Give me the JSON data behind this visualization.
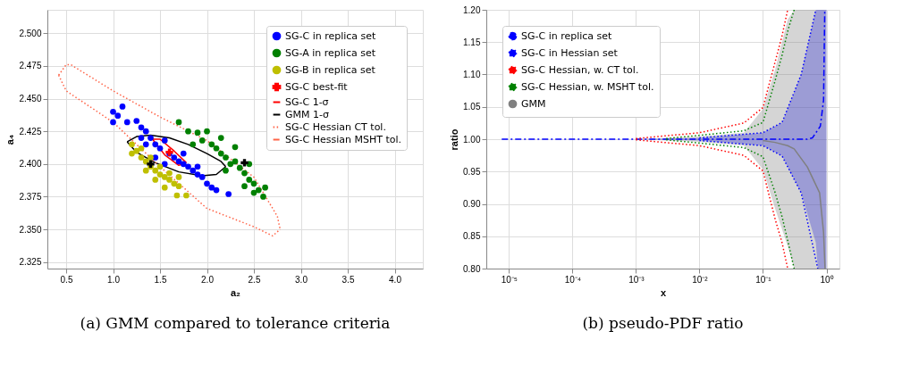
{
  "chart_data": [
    {
      "type": "scatter",
      "title": "(a) GMM compared to tolerance criteria",
      "xlabel": "a₂",
      "ylabel": "a₄",
      "xlim": [
        0.3,
        4.3
      ],
      "ylim": [
        2.32,
        2.518
      ],
      "xticks": [
        0.5,
        {
          "value": 1,
          "label": "1.0"
        },
        1.5,
        {
          "value": 2,
          "label": "2.0"
        },
        2.5,
        {
          "value": 3,
          "label": "3.0"
        },
        3.5,
        {
          "value": 4,
          "label": "4.0"
        }
      ],
      "yticks": [
        {
          "value": 2.325,
          "label": "2.325"
        },
        {
          "value": 2.35,
          "label": "2.350"
        },
        {
          "value": 2.375,
          "label": "2.375"
        },
        {
          "value": 2.4,
          "label": "2.400"
        },
        {
          "value": 2.425,
          "label": "2.425"
        },
        {
          "value": 2.45,
          "label": "2.450"
        },
        {
          "value": 2.475,
          "label": "2.475"
        },
        {
          "value": 2.5,
          "label": "2.500"
        }
      ],
      "grid": true,
      "legend": "top right",
      "series": [
        {
          "name": "SG-C in replica set",
          "marker": "circle",
          "color": "#0000ff",
          "x": [
            1.0,
            1.05,
            1.1,
            1.0,
            1.15,
            1.25,
            1.3,
            1.35,
            1.3,
            1.4,
            1.45,
            1.5,
            1.55,
            1.6,
            1.65,
            1.7,
            1.75,
            1.8,
            1.85,
            1.9,
            1.95,
            2.0,
            2.05,
            2.1,
            2.23,
            1.45,
            1.55,
            1.75,
            1.9,
            1.35
          ],
          "values": [
            2.44,
            2.437,
            2.444,
            2.432,
            2.432,
            2.433,
            2.428,
            2.425,
            2.42,
            2.42,
            2.415,
            2.412,
            2.418,
            2.408,
            2.405,
            2.402,
            2.4,
            2.398,
            2.395,
            2.392,
            2.39,
            2.385,
            2.382,
            2.38,
            2.377,
            2.405,
            2.4,
            2.408,
            2.398,
            2.415
          ]
        },
        {
          "name": "SG-A in replica set",
          "marker": "circle",
          "color": "#008000",
          "x": [
            1.7,
            1.8,
            1.9,
            2.0,
            1.95,
            2.05,
            2.1,
            2.15,
            2.2,
            2.25,
            2.3,
            2.35,
            2.4,
            2.45,
            2.5,
            2.55,
            2.6,
            2.3,
            2.2,
            2.4,
            2.5,
            2.15,
            1.85,
            2.45,
            2.62
          ],
          "values": [
            2.432,
            2.425,
            2.424,
            2.425,
            2.418,
            2.415,
            2.412,
            2.408,
            2.405,
            2.4,
            2.402,
            2.397,
            2.393,
            2.388,
            2.385,
            2.38,
            2.375,
            2.413,
            2.395,
            2.383,
            2.378,
            2.42,
            2.415,
            2.4,
            2.382
          ]
        },
        {
          "name": "SG-B in replica set",
          "marker": "circle",
          "color": "#bfbf00",
          "x": [
            1.2,
            1.25,
            1.3,
            1.2,
            1.35,
            1.4,
            1.45,
            1.5,
            1.55,
            1.6,
            1.65,
            1.7,
            1.55,
            1.68,
            1.78,
            1.3,
            1.4,
            1.5,
            1.45,
            1.6,
            1.35,
            1.7
          ],
          "values": [
            2.415,
            2.41,
            2.405,
            2.408,
            2.402,
            2.398,
            2.395,
            2.392,
            2.39,
            2.388,
            2.385,
            2.383,
            2.382,
            2.376,
            2.376,
            2.412,
            2.405,
            2.398,
            2.388,
            2.393,
            2.395,
            2.39
          ]
        },
        {
          "name": "SG-C best-fit",
          "marker": "cross",
          "color": "#ff0000",
          "x": [
            1.6
          ],
          "values": [
            2.409
          ]
        },
        {
          "name": "SG-C 1-σ",
          "type": "line",
          "line_style": "solid",
          "color": "#ff0000",
          "x": [
            1.42,
            1.5,
            1.65,
            1.78
          ],
          "values": [
            2.419,
            2.419,
            2.41,
            2.401
          ]
        },
        {
          "type": "line",
          "line_style": "solid",
          "color": "#ff0000",
          "x": [
            1.42,
            1.55,
            1.7,
            1.78
          ],
          "values": [
            2.419,
            2.407,
            2.399,
            2.401
          ]
        },
        {
          "name": "GMM 1-σ",
          "type": "line",
          "line_style": "solid",
          "color": "#000000",
          "x": [
            1.15,
            1.25,
            1.4,
            1.6,
            1.8,
            2.0,
            2.15,
            2.2
          ],
          "values": [
            2.417,
            2.421,
            2.422,
            2.42,
            2.415,
            2.408,
            2.402,
            2.398
          ]
        },
        {
          "type": "line",
          "line_style": "solid",
          "color": "#000000",
          "x": [
            1.15,
            1.25,
            1.45,
            1.7,
            1.95,
            2.1,
            2.2
          ],
          "values": [
            2.417,
            2.409,
            2.401,
            2.394,
            2.391,
            2.392,
            2.398
          ]
        },
        {
          "name": "SG-C Hessian CT tol.",
          "type": "line",
          "line_style": "dotted",
          "color": "#ff6347",
          "x": [
            0.42,
            0.5,
            0.55,
            1.0,
            1.5,
            2.0,
            2.5,
            2.75,
            2.78
          ],
          "values": [
            2.468,
            2.476,
            2.476,
            2.456,
            2.436,
            2.418,
            2.39,
            2.36,
            2.35
          ]
        },
        {
          "type": "line",
          "line_style": "dotted",
          "color": "#ff6347",
          "x": [
            0.42,
            0.5,
            1.0,
            1.5,
            2.0,
            2.5,
            2.7,
            2.78
          ],
          "values": [
            2.468,
            2.456,
            2.432,
            2.398,
            2.366,
            2.352,
            2.345,
            2.35
          ]
        },
        {
          "name": "SG-C Hessian MSHT tol.",
          "type": "line",
          "line_style": "dashed",
          "color": "#ff6347"
        },
        {
          "marker": "cross",
          "color": "#000000",
          "x": [
            1.4,
            2.4
          ],
          "values": [
            2.4,
            2.401
          ]
        }
      ]
    },
    {
      "type": "line",
      "title": "(b) pseudo-PDF ratio",
      "xlabel": "x",
      "ylabel": "ratio",
      "log": "x",
      "xlim": [
        4.4e-06,
        1.6
      ],
      "ylim": [
        0.8,
        1.2
      ],
      "xticks": [
        {
          "value": 1e-05,
          "label": "10⁻⁵"
        },
        {
          "value": 0.0001,
          "label": "10⁻⁴"
        },
        {
          "value": 0.001,
          "label": "10⁻³"
        },
        {
          "value": 0.01,
          "label": "10⁻²"
        },
        {
          "value": 0.1,
          "label": "10⁻¹"
        },
        {
          "value": 1,
          "label": "10⁰"
        }
      ],
      "yticks": [
        {
          "value": 0.8,
          "label": "0.80"
        },
        0.85,
        {
          "value": 0.9,
          "label": "0.90"
        },
        0.95,
        {
          "value": 1,
          "label": "1.00"
        },
        1.05,
        {
          "value": 1.1,
          "label": "1.10"
        },
        1.15,
        {
          "value": 1.2,
          "label": "1.20"
        }
      ],
      "grid": true,
      "legend": "top left",
      "series": [
        {
          "name": "SG-C in replica set",
          "line_style": "dashed",
          "color": "#0000ff",
          "x": [
            7.7e-06,
            0.001,
            0.1,
            0.5,
            0.6,
            0.8,
            0.9,
            0.94
          ],
          "values": [
            1,
            1,
            1,
            1,
            1.002,
            1.02,
            1.06,
            1.2
          ]
        },
        {
          "name": "SG-C in Hessian set",
          "type": "area",
          "line_style": "dotted",
          "color": "#0000ff",
          "x": [
            0.001,
            0.01,
            0.1,
            0.2,
            0.4,
            0.68,
            0.73,
            1.0
          ],
          "values": [
            null,
            null,
            null,
            null,
            null,
            null,
            null,
            null
          ],
          "upper": [
            1,
            1.002,
            1.01,
            1.026,
            1.1,
            1.2,
            1.2,
            1.2
          ],
          "lower": [
            1,
            0.998,
            0.99,
            0.974,
            0.917,
            0.84,
            0.8,
            0.8
          ]
        },
        {
          "name": "SG-C Hessian, w. CT tol.",
          "line_style": "dotted",
          "color": "#ff0000",
          "x": [
            0.001,
            0.01,
            0.05,
            0.1,
            0.156,
            0.2,
            0.245
          ],
          "values": [
            1.001,
            1.01,
            1.025,
            1.049,
            1.12,
            1.16,
            1.2
          ]
        },
        {
          "line_style": "dotted",
          "color": "#ff0000",
          "x": [
            0.001,
            0.01,
            0.05,
            0.1,
            0.156,
            0.2,
            0.245
          ],
          "values": [
            0.999,
            0.99,
            0.975,
            0.951,
            0.876,
            0.84,
            0.8
          ]
        },
        {
          "name": "SG-C Hessian, w. MSHT tol.",
          "line_style": "dotted",
          "color": "#008000",
          "x": [
            0.003,
            0.01,
            0.05,
            0.1,
            0.156,
            0.2,
            0.25,
            0.31
          ],
          "values": [
            1.001,
            1.006,
            1.013,
            1.026,
            1.091,
            1.13,
            1.17,
            1.2
          ]
        },
        {
          "line_style": "dotted",
          "color": "#008000",
          "x": [
            0.003,
            0.01,
            0.05,
            0.1,
            0.156,
            0.2,
            0.25,
            0.31
          ],
          "values": [
            0.999,
            0.994,
            0.987,
            0.973,
            0.917,
            0.88,
            0.84,
            0.8
          ]
        },
        {
          "line_style": "dotted",
          "color": "#0000ff",
          "x": [
            0.01,
            0.1,
            0.2,
            0.4,
            0.68
          ],
          "values": [
            1.002,
            1.01,
            1.026,
            1.1,
            1.2
          ]
        },
        {
          "line_style": "dotted",
          "color": "#0000ff",
          "x": [
            0.01,
            0.1,
            0.2,
            0.4,
            0.73
          ],
          "values": [
            0.998,
            0.99,
            0.974,
            0.917,
            0.8
          ]
        },
        {
          "name": "GMM",
          "color": "#808080",
          "x": [
            7.7e-06,
            0.001,
            0.01,
            0.05,
            0.1,
            0.156,
            0.245,
            0.31,
            0.5,
            0.78,
            0.9,
            0.95,
            1.0
          ],
          "values": [
            null,
            null,
            null,
            null,
            0.998,
            0.995,
            0.99,
            0.985,
            0.957,
            0.917,
            0.856,
            0.8,
            null
          ],
          "upper": [
            1,
            1,
            1.004,
            1.01,
            1.047,
            1.108,
            1.185,
            1.2,
            1.2,
            1.2,
            1.2,
            1.2,
            1.2
          ],
          "lower": [
            1,
            1,
            0.996,
            0.99,
            0.953,
            0.892,
            0.835,
            0.8,
            0.8,
            0.8,
            0.8,
            0.8,
            0.8
          ]
        }
      ]
    }
  ]
}
